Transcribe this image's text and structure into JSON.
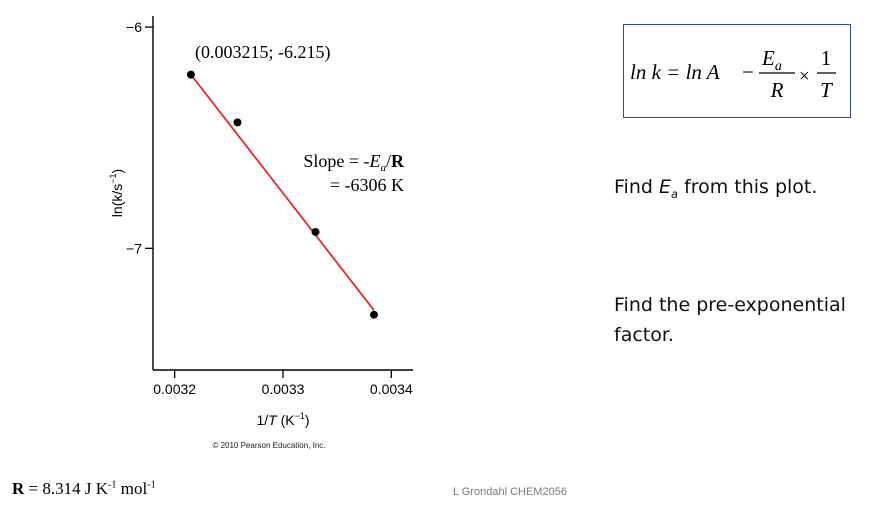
{
  "chart_data": {
    "type": "scatter",
    "x": [
      0.003215,
      0.003258,
      0.00333,
      0.003384
    ],
    "y": [
      -6.215,
      -6.431,
      -6.926,
      -7.3
    ],
    "fit_line": {
      "x": [
        0.003215,
        0.003384
      ],
      "y": [
        -6.215,
        -7.28
      ],
      "color": "#e8262a"
    },
    "xlim": [
      0.00318,
      0.00342
    ],
    "ylim": [
      -7.55,
      -5.95
    ],
    "xticks": [
      0.0032,
      0.0033,
      0.0034
    ],
    "xtick_labels": [
      "0.0032",
      "0.0033",
      "0.0034"
    ],
    "yticks": [
      -6,
      -7
    ],
    "ytick_labels": [
      "−6",
      "−7"
    ],
    "xlabel": {
      "pre": "1/",
      "var": "T",
      "post": " (K",
      "sup": "−1",
      "close": ")"
    },
    "ylabel": {
      "text": "ln(k/s",
      "sup": "−1",
      "close": ")"
    },
    "annotations": {
      "point": "(0.003215; -6.215)",
      "slope_pre": "Slope = -",
      "slope_var": "E",
      "slope_sub": "a",
      "slope_mid": "/",
      "slope_R": "R",
      "slope_value": "= -6306 K"
    },
    "copyright": "© 2010 Pearson Education, Inc.",
    "grid": false,
    "colors": {
      "line": "#e8262a",
      "points": "#000000"
    }
  },
  "equation": {
    "lhs": "ln k = ln A",
    "minus": "−",
    "num_var": "E",
    "num_sub": "a",
    "den": "R",
    "times": "×",
    "frac2_num": "1",
    "frac2_den": "T"
  },
  "questions": {
    "q1_pre": "Find ",
    "q1_var": "E",
    "q1_sub": "a",
    "q1_post": " from this plot.",
    "q2_line1": "Find the pre-exponential",
    "q2_line2": "factor."
  },
  "constant": {
    "bold": "R",
    "text": " = 8.314 J K",
    "sup1": "-1",
    "mid": " mol",
    "sup2": "-1"
  },
  "credit": "L Grondahl CHEM2056"
}
